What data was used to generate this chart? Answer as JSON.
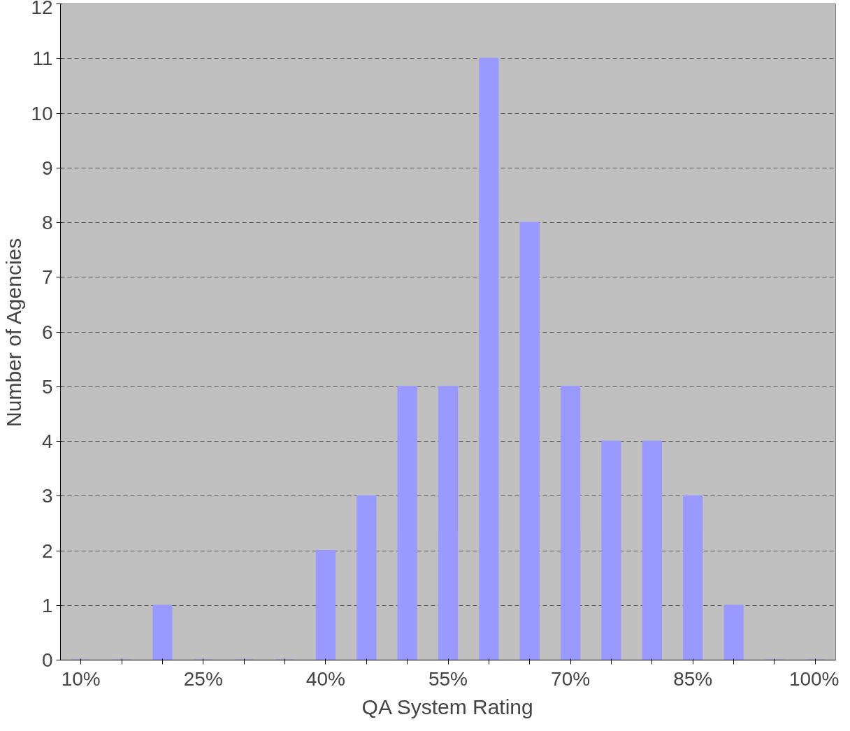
{
  "chart_data": {
    "type": "bar",
    "xlabel": "QA System Rating",
    "ylabel": "Number of Agencies",
    "categories": [
      "10%",
      null,
      null,
      "25%",
      null,
      null,
      "40%",
      null,
      null,
      "55%",
      null,
      null,
      "70%",
      null,
      null,
      "85%",
      null,
      null,
      "100%"
    ],
    "values": [
      0,
      0,
      1,
      0,
      0,
      0,
      2,
      3,
      5,
      5,
      11,
      8,
      5,
      4,
      4,
      3,
      1,
      0,
      0
    ],
    "color": "#9999ff",
    "ylim": [
      0,
      12
    ],
    "yticks": [
      0,
      1,
      2,
      3,
      4,
      5,
      6,
      7,
      8,
      9,
      10,
      11,
      12
    ],
    "grid": "y",
    "line_style": "dashed"
  }
}
